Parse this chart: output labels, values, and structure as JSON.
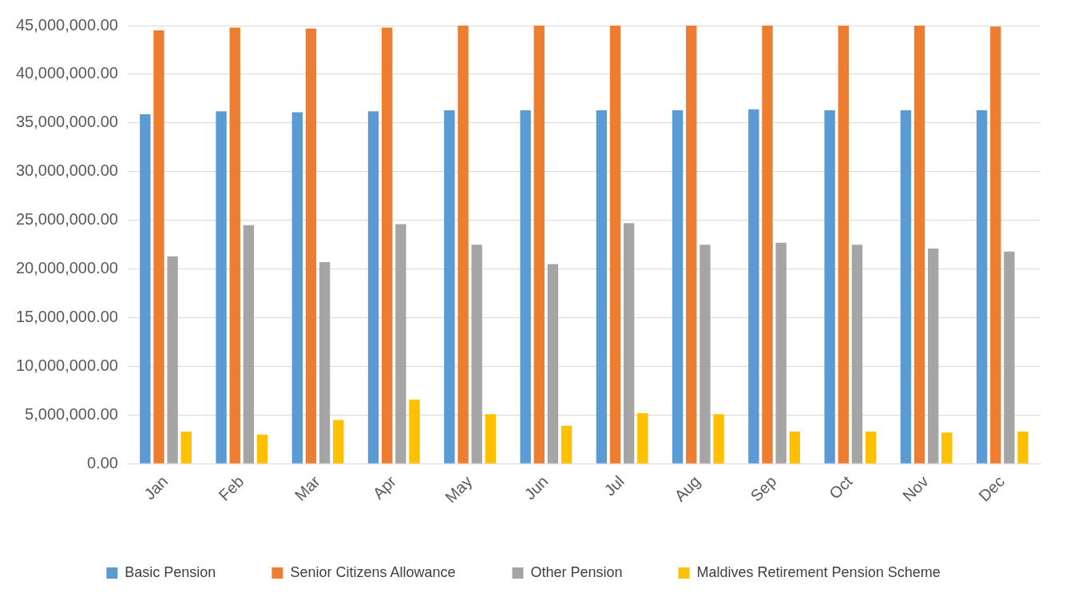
{
  "chart_data": {
    "type": "bar",
    "categories": [
      "Jan",
      "Feb",
      "Mar",
      "Apr",
      "May",
      "Jun",
      "Jul",
      "Aug",
      "Sep",
      "Oct",
      "Nov",
      "Dec"
    ],
    "series": [
      {
        "name": "Basic Pension",
        "color": "#5b9bd5",
        "values": [
          35900000,
          36200000,
          36100000,
          36200000,
          36300000,
          36300000,
          36300000,
          36300000,
          36400000,
          36300000,
          36300000,
          36300000
        ]
      },
      {
        "name": "Senior Citizens Allowance",
        "color": "#ed7d31",
        "values": [
          44500000,
          44800000,
          44700000,
          44800000,
          45000000,
          45000000,
          45000000,
          45000000,
          45000000,
          45000000,
          45000000,
          44900000
        ]
      },
      {
        "name": "Other Pension",
        "color": "#a5a5a5",
        "values": [
          21300000,
          24500000,
          20700000,
          24600000,
          22500000,
          20500000,
          24700000,
          22500000,
          22700000,
          22500000,
          22100000,
          21800000
        ]
      },
      {
        "name": "Maldives Retirement Pension Scheme",
        "color": "#ffc000",
        "values": [
          3300000,
          3000000,
          4500000,
          6600000,
          5100000,
          3900000,
          5200000,
          5100000,
          3300000,
          3300000,
          3200000,
          3300000
        ]
      }
    ],
    "ylim": [
      0,
      45000000
    ],
    "yticks": [
      {
        "value": 0,
        "label": "0.00"
      },
      {
        "value": 5000000,
        "label": "5,000,000.00"
      },
      {
        "value": 10000000,
        "label": "10,000,000.00"
      },
      {
        "value": 15000000,
        "label": "15,000,000.00"
      },
      {
        "value": 20000000,
        "label": "20,000,000.00"
      },
      {
        "value": 25000000,
        "label": "25,000,000.00"
      },
      {
        "value": 30000000,
        "label": "30,000,000.00"
      },
      {
        "value": 35000000,
        "label": "35,000,000.00"
      },
      {
        "value": 40000000,
        "label": "40,000,000.00"
      },
      {
        "value": 45000000,
        "label": "45,000,000.00"
      }
    ],
    "grid": "y",
    "legend": "bottom"
  }
}
